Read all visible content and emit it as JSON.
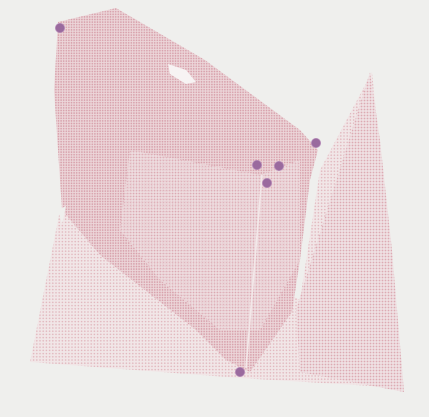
{
  "scene": {
    "background_color": "#efefed",
    "cloud_color": "#dcaab3",
    "cloud_edge_color": "#e8c3c9",
    "marker_color": "#9a6a9e",
    "marker_stroke": "#b489b7"
  },
  "markers": [
    {
      "id": "top-left"
    },
    {
      "id": "right-edge"
    },
    {
      "id": "center-1"
    },
    {
      "id": "center-2"
    },
    {
      "id": "center-3"
    },
    {
      "id": "bottom"
    }
  ]
}
